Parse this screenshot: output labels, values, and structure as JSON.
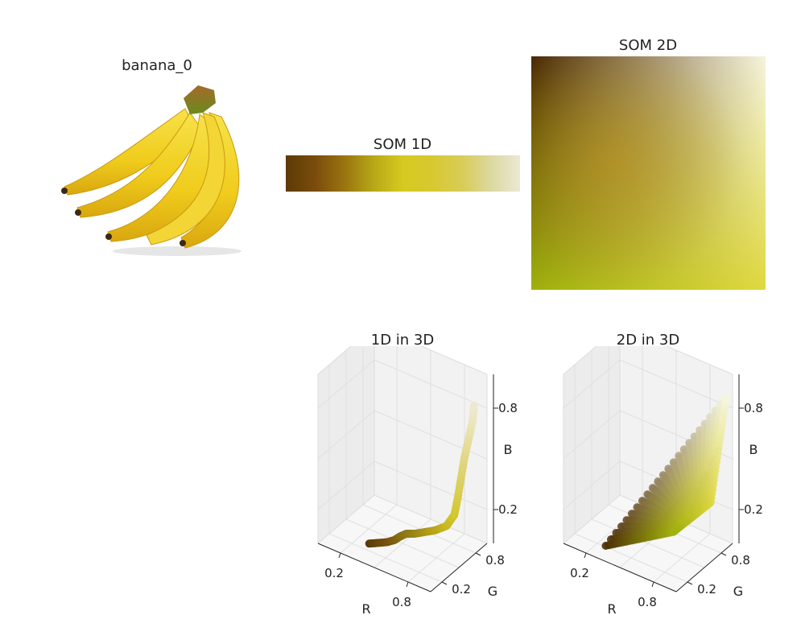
{
  "panels": {
    "image_title": "banana_0",
    "som1d_title": "SOM 1D",
    "som2d_title": "SOM 2D",
    "plot1d3d_title": "1D in 3D",
    "plot2d3d_title": "2D in 3D"
  },
  "colors": {
    "som1d_stops": [
      "#5c3a06",
      "#7a4c0c",
      "#9a7410",
      "#b8a818",
      "#d6ca20",
      "#d8c830",
      "#d8cc55",
      "#dcd8a0",
      "#ece8d4"
    ],
    "som2d_corners": {
      "top_left": "#4a2a04",
      "top_right": "#f6f4dc",
      "bottom_left": "#a0b00c",
      "bottom_right": "#e0d840",
      "center": "#c0901a"
    },
    "pane_fill": "#f2f2f2",
    "grid": "#e0e0e0"
  },
  "chart_data": [
    {
      "type": "scatter",
      "title": "1D in 3D",
      "projection": "3d",
      "xlabel": "R",
      "ylabel": "G",
      "zlabel": "B",
      "xticks": [
        "0.2",
        "0.8"
      ],
      "yticks": [
        "0.2",
        "0.8"
      ],
      "zticks": [
        "0.2",
        "0.8"
      ],
      "xlim": [
        0,
        1
      ],
      "ylim": [
        0,
        1
      ],
      "zlim": [
        0,
        1
      ],
      "points": [
        [
          0.34,
          0.23,
          0.03
        ],
        [
          0.4,
          0.27,
          0.04
        ],
        [
          0.46,
          0.31,
          0.05
        ],
        [
          0.5,
          0.36,
          0.06
        ],
        [
          0.52,
          0.42,
          0.07
        ],
        [
          0.55,
          0.47,
          0.08
        ],
        [
          0.6,
          0.52,
          0.08
        ],
        [
          0.66,
          0.58,
          0.09
        ],
        [
          0.72,
          0.64,
          0.1
        ],
        [
          0.78,
          0.72,
          0.12
        ],
        [
          0.82,
          0.78,
          0.18
        ],
        [
          0.84,
          0.8,
          0.28
        ],
        [
          0.86,
          0.82,
          0.4
        ],
        [
          0.88,
          0.84,
          0.52
        ],
        [
          0.9,
          0.87,
          0.62
        ],
        [
          0.92,
          0.9,
          0.72
        ],
        [
          0.93,
          0.91,
          0.82
        ]
      ]
    },
    {
      "type": "scatter",
      "title": "2D in 3D",
      "projection": "3d",
      "xlabel": "R",
      "ylabel": "G",
      "zlabel": "B",
      "xticks": [
        "0.2",
        "0.8"
      ],
      "yticks": [
        "0.2",
        "0.8"
      ],
      "zticks": [
        "0.2",
        "0.8"
      ],
      "xlim": [
        0,
        1
      ],
      "ylim": [
        0,
        1
      ],
      "zlim": [
        0,
        1
      ],
      "grid_size": [
        8,
        8
      ],
      "corners": {
        "top_left": [
          0.29,
          0.17,
          0.02
        ],
        "top_right": [
          0.96,
          0.96,
          0.86
        ],
        "bottom_left": [
          0.63,
          0.69,
          0.05
        ],
        "bottom_right": [
          0.88,
          0.85,
          0.25
        ]
      }
    }
  ]
}
